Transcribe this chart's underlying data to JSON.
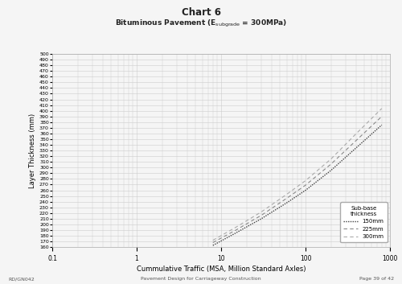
{
  "title": "Chart 6",
  "subtitle": "Bituminous Pavement (E$_{subgrade}$ = 300MPa)",
  "xlabel": "Cummulative Traffic (MSA, Million Standard Axles)",
  "ylabel": "Layer Thickness (mm)",
  "xmin": 0.1,
  "xmax": 1000,
  "ymin": 160,
  "ymax": 500,
  "yticks": [
    160,
    170,
    180,
    190,
    200,
    210,
    220,
    230,
    240,
    250,
    260,
    270,
    280,
    290,
    300,
    310,
    320,
    330,
    340,
    350,
    360,
    370,
    380,
    390,
    400,
    410,
    420,
    430,
    440,
    450,
    460,
    470,
    480,
    490,
    500
  ],
  "footer_left": "RD/GN042",
  "footer_center": "Pavement Design for Carriageway Construction",
  "footer_right": "Page 39 of 42",
  "legend_title": "Sub-base\nthickness",
  "lines": [
    {
      "label": "150mm",
      "style": "dotted",
      "color": "#444444",
      "x": [
        8.0,
        15,
        30,
        60,
        100,
        200,
        400,
        800
      ],
      "y": [
        163,
        185,
        210,
        238,
        260,
        295,
        335,
        375
      ]
    },
    {
      "label": "225mm",
      "style": "loosedash",
      "color": "#888888",
      "x": [
        8.0,
        15,
        30,
        60,
        100,
        200,
        400,
        800
      ],
      "y": [
        168,
        190,
        216,
        246,
        269,
        306,
        348,
        390
      ]
    },
    {
      "label": "300mm",
      "style": "loosedash",
      "color": "#aaaaaa",
      "x": [
        8.0,
        15,
        30,
        60,
        100,
        200,
        400,
        800
      ],
      "y": [
        172,
        195,
        222,
        253,
        277,
        315,
        360,
        404
      ]
    }
  ],
  "background_color": "#f5f5f5",
  "grid_color": "#cccccc"
}
